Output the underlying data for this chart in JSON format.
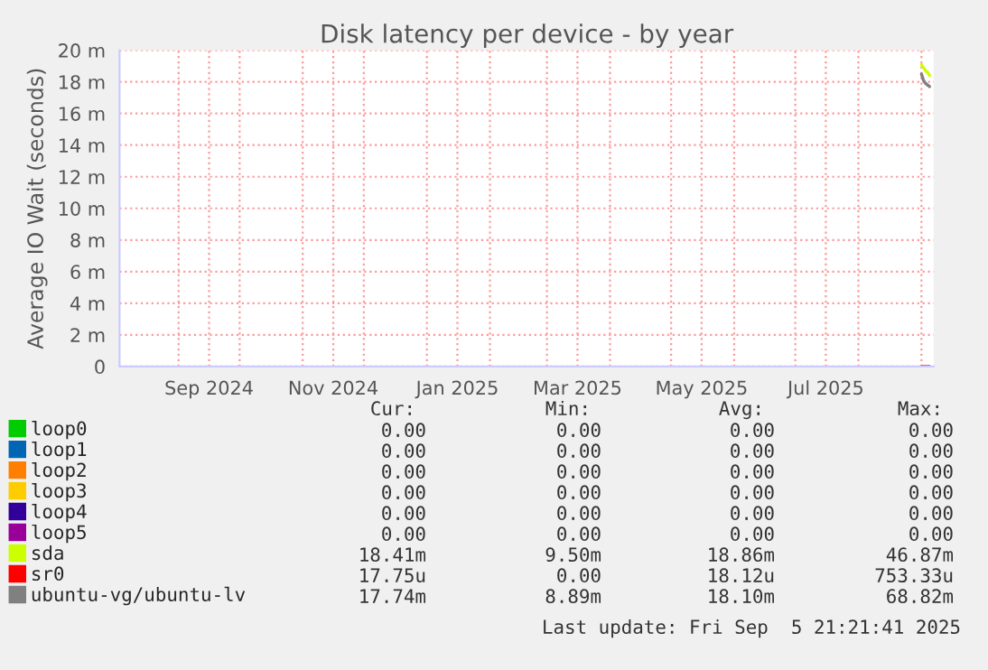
{
  "chart_data": {
    "type": "line",
    "title": "Disk latency per device - by year",
    "ylabel": "Average IO Wait (seconds)",
    "x": [
      "2025-09-01",
      "2025-09-02",
      "2025-09-03",
      "2025-09-04",
      "2025-09-05"
    ],
    "xlim": [
      "2024-08-03",
      "2025-09-07"
    ],
    "xticks": [
      {
        "value": "2024-09-01",
        "label": null
      },
      {
        "value": "2024-09-16",
        "label": "Sep 2024"
      },
      {
        "value": "2024-10-01",
        "label": null
      },
      {
        "value": "2024-11-01",
        "label": null
      },
      {
        "value": "2024-11-16",
        "label": "Nov 2024"
      },
      {
        "value": "2024-12-01",
        "label": null
      },
      {
        "value": "2025-01-01",
        "label": null
      },
      {
        "value": "2025-01-16",
        "label": "Jan 2025"
      },
      {
        "value": "2025-02-01",
        "label": null
      },
      {
        "value": "2025-03-01",
        "label": null
      },
      {
        "value": "2025-03-16",
        "label": "Mar 2025"
      },
      {
        "value": "2025-04-01",
        "label": null
      },
      {
        "value": "2025-05-01",
        "label": null
      },
      {
        "value": "2025-05-16",
        "label": "May 2025"
      },
      {
        "value": "2025-06-01",
        "label": null
      },
      {
        "value": "2025-07-01",
        "label": null
      },
      {
        "value": "2025-07-16",
        "label": "Jul 2025"
      },
      {
        "value": "2025-08-01",
        "label": null
      },
      {
        "value": "2025-09-01",
        "label": null
      }
    ],
    "ylim": [
      0,
      20
    ],
    "yticks": [
      0,
      {
        "value": 2,
        "label": "2 m"
      },
      {
        "value": 4,
        "label": "4 m"
      },
      {
        "value": 6,
        "label": "6 m"
      },
      {
        "value": 8,
        "label": "8 m"
      },
      {
        "value": 10,
        "label": "10 m"
      },
      {
        "value": 12,
        "label": "12 m"
      },
      {
        "value": 14,
        "label": "14 m"
      },
      {
        "value": 16,
        "label": "16 m"
      },
      {
        "value": 18,
        "label": "18 m"
      },
      {
        "value": 20,
        "label": "20 m"
      }
    ],
    "grid": true,
    "legend": "bottom",
    "marker": "none",
    "line_style": "solid",
    "series": [
      {
        "name": "loop0",
        "color": "#00cc00",
        "values": [
          null,
          null,
          null,
          null,
          null
        ]
      },
      {
        "name": "loop1",
        "color": "#0066b3",
        "values": [
          null,
          null,
          null,
          null,
          null
        ]
      },
      {
        "name": "loop2",
        "color": "#ff8000",
        "values": [
          null,
          null,
          null,
          null,
          null
        ]
      },
      {
        "name": "loop3",
        "color": "#ffcc00",
        "values": [
          null,
          null,
          null,
          null,
          null
        ]
      },
      {
        "name": "loop4",
        "color": "#330099",
        "values": [
          null,
          null,
          null,
          null,
          null
        ]
      },
      {
        "name": "loop5",
        "color": "#990099",
        "values": [
          null,
          null,
          null,
          null,
          null
        ]
      },
      {
        "name": "sda",
        "color": "#ccff00",
        "values": [
          19.1,
          18.9,
          18.7,
          18.6,
          18.4
        ]
      },
      {
        "name": "sr0",
        "color": "#ff0000",
        "values": [
          0,
          0,
          0,
          0,
          0
        ]
      },
      {
        "name": "ubuntu-vg/ubuntu-lv",
        "color": "#808080",
        "values": [
          18.5,
          18.1,
          17.9,
          17.8,
          17.7
        ]
      }
    ],
    "annotations": [
      "Cur:",
      "Min:",
      "Avg:",
      "Max:",
      "0.00",
      "0.00",
      "0.00",
      "0.00",
      "0.00",
      "0.00",
      "0.00",
      "0.00",
      "0.00",
      "0.00",
      "0.00",
      "0.00",
      "0.00",
      "0.00",
      "0.00",
      "0.00",
      "0.00",
      "0.00",
      "0.00",
      "0.00",
      "0.00",
      "0.00",
      "0.00",
      "0.00",
      "18.41m",
      "9.50m",
      "18.86m",
      "46.87m",
      "17.75u",
      "0.00",
      "18.12u",
      "753.33u",
      "17.74m",
      "8.89m",
      "18.10m",
      "68.82m",
      "Last update: Fri Sep  5 21:21:41 2025"
    ]
  }
}
